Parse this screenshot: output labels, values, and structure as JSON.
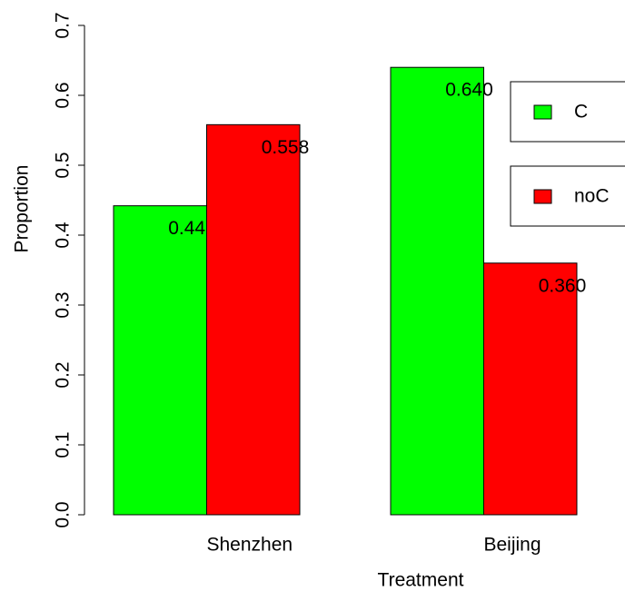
{
  "chart_data": {
    "type": "bar",
    "xlabel": "Treatment",
    "ylabel": "Proportion",
    "categories": [
      "Shenzhen",
      "Beijing"
    ],
    "series": [
      {
        "name": "C",
        "color": "#00ff00",
        "values": [
          0.442,
          0.64
        ],
        "value_labels": [
          "0.442",
          "0.640"
        ]
      },
      {
        "name": "noC",
        "color": "#ff0000",
        "values": [
          0.558,
          0.36
        ],
        "value_labels": [
          "0.558",
          "0.360"
        ]
      }
    ],
    "ylim": [
      0,
      0.7
    ],
    "yticks": [
      {
        "value": 0,
        "label": "0.0"
      },
      0.1,
      0.2,
      0.3,
      0.4,
      0.5,
      0.6,
      0.7
    ],
    "legend": "right"
  }
}
